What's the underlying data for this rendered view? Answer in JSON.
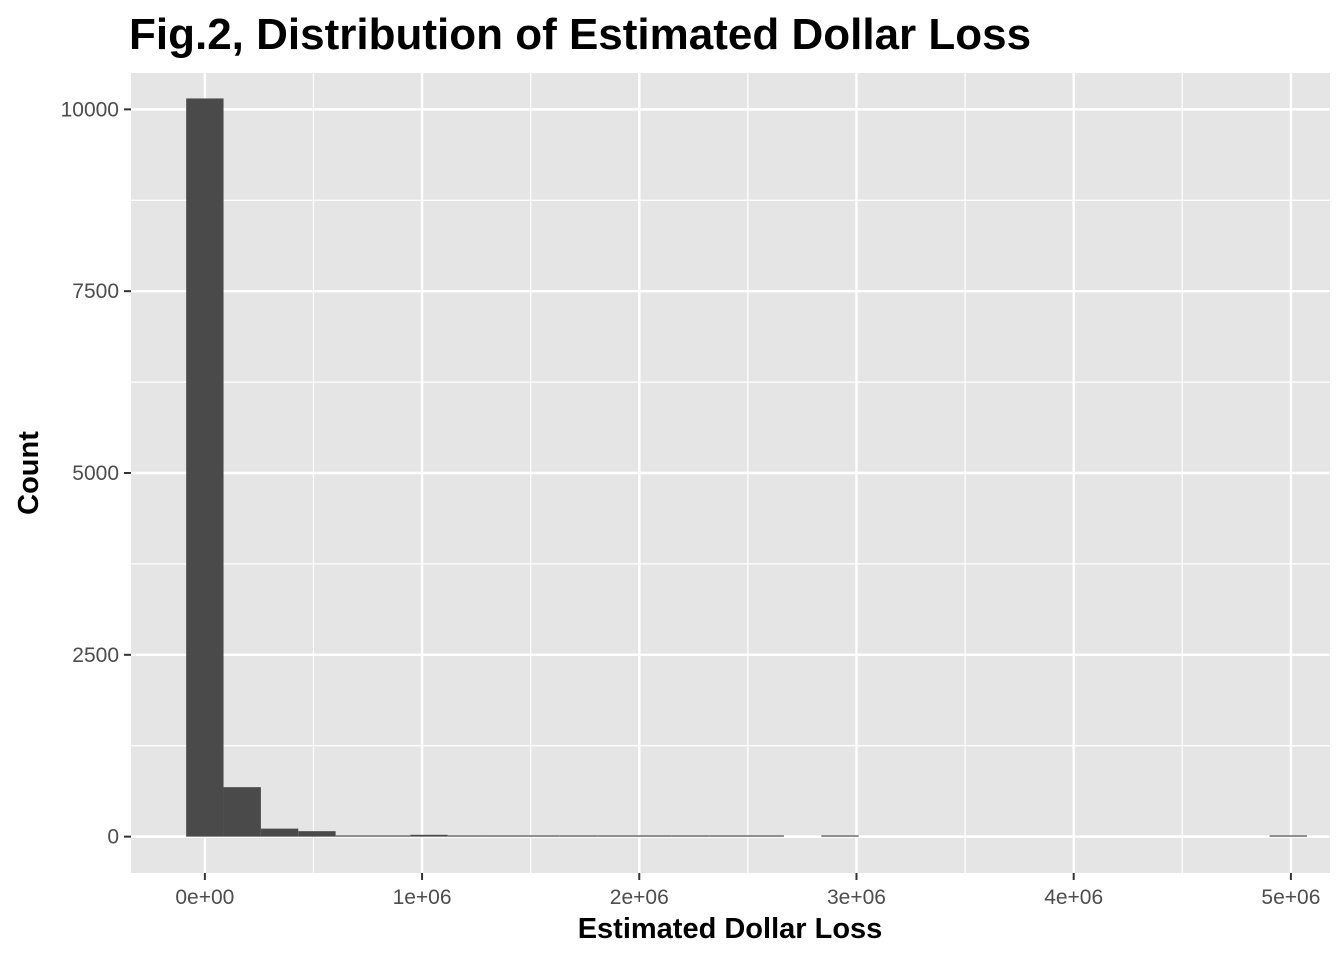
{
  "chart_data": {
    "type": "bar",
    "title": "Fig.2, Distribution of Estimated Dollar Loss",
    "xlabel": "Estimated Dollar Loss",
    "ylabel": "Count",
    "xlim": [
      -340000,
      5180000
    ],
    "ylim": [
      -500,
      10500
    ],
    "x_ticks": [
      {
        "value": 0,
        "label": "0e+00"
      },
      {
        "value": 1000000,
        "label": "1e+06"
      },
      {
        "value": 2000000,
        "label": "2e+06"
      },
      {
        "value": 3000000,
        "label": "3e+06"
      },
      {
        "value": 4000000,
        "label": "4e+06"
      },
      {
        "value": 5000000,
        "label": "5e+06"
      }
    ],
    "y_ticks": [
      {
        "value": 0,
        "label": "0"
      },
      {
        "value": 2500,
        "label": "2500"
      },
      {
        "value": 5000,
        "label": "5000"
      },
      {
        "value": 7500,
        "label": "7500"
      },
      {
        "value": 10000,
        "label": "10000"
      }
    ],
    "bin_width": 172000,
    "bins": [
      {
        "start": -86000,
        "count": 10150
      },
      {
        "start": 86000,
        "count": 680
      },
      {
        "start": 258000,
        "count": 110
      },
      {
        "start": 430000,
        "count": 75
      },
      {
        "start": 602000,
        "count": 15
      },
      {
        "start": 774000,
        "count": 10
      },
      {
        "start": 946000,
        "count": 25
      },
      {
        "start": 1118000,
        "count": 4
      },
      {
        "start": 1290000,
        "count": 2
      },
      {
        "start": 1462000,
        "count": 2
      },
      {
        "start": 1634000,
        "count": 1
      },
      {
        "start": 1806000,
        "count": 2
      },
      {
        "start": 1978000,
        "count": 12
      },
      {
        "start": 2150000,
        "count": 1
      },
      {
        "start": 2322000,
        "count": 2
      },
      {
        "start": 2494000,
        "count": 1
      },
      {
        "start": 2666000,
        "count": 0
      },
      {
        "start": 2838000,
        "count": 1
      },
      {
        "start": 3010000,
        "count": 0
      },
      {
        "start": 3182000,
        "count": 0
      },
      {
        "start": 3354000,
        "count": 0
      },
      {
        "start": 3526000,
        "count": 0
      },
      {
        "start": 3698000,
        "count": 0
      },
      {
        "start": 3870000,
        "count": 0
      },
      {
        "start": 4042000,
        "count": 0
      },
      {
        "start": 4214000,
        "count": 0
      },
      {
        "start": 4386000,
        "count": 0
      },
      {
        "start": 4558000,
        "count": 0
      },
      {
        "start": 4730000,
        "count": 0
      },
      {
        "start": 4902000,
        "count": 2
      }
    ],
    "grid": true,
    "colors": {
      "panel": "#e5e5e5",
      "grid": "#ffffff",
      "bar": "#4a4a4a",
      "tick": "#333333"
    }
  }
}
